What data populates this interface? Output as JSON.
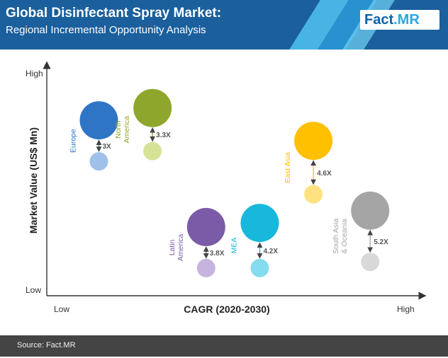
{
  "header": {
    "title": "Global Disinfectant Spray Market:",
    "subtitle": "Regional Incremental Opportunity Analysis",
    "logo": {
      "main": "Fact",
      "accent": ".MR"
    }
  },
  "footer": {
    "source": "Source: Fact.MR"
  },
  "colors": {
    "header_bg": "#1b5f9c",
    "stripe_light": "#4fc3f0",
    "stripe_mid": "#2a97d6",
    "footer_bg": "#444444"
  },
  "chart_data": {
    "type": "bubble",
    "xlabel": "CAGR (2020-2030)",
    "ylabel": "Market Value (US$ Mn)",
    "x_tick_labels": [
      "Low",
      "High"
    ],
    "y_tick_labels": [
      "Low",
      "High"
    ],
    "grid": false,
    "series": [
      {
        "name": "Europe",
        "label_lines": [
          "Europe"
        ],
        "color": "#2e75c6",
        "light_color": "#9fc0e8",
        "x": 0.1,
        "y_big": 0.81,
        "y_small": 0.61,
        "multiplier": "3X"
      },
      {
        "name": "North America",
        "label_lines": [
          "North",
          "America"
        ],
        "color": "#8ea62b",
        "light_color": "#d6e396",
        "x": 0.27,
        "y_big": 0.87,
        "y_small": 0.66,
        "multiplier": "3.3X"
      },
      {
        "name": "Latin America",
        "label_lines": [
          "Latin",
          "America"
        ],
        "color": "#7b5ba7",
        "light_color": "#c6b4de",
        "x": 0.44,
        "y_big": 0.29,
        "y_small": 0.09,
        "multiplier": "3.8X"
      },
      {
        "name": "MEA",
        "label_lines": [
          "MEA"
        ],
        "color": "#17b8dc",
        "light_color": "#86dcef",
        "x": 0.61,
        "y_big": 0.31,
        "y_small": 0.09,
        "multiplier": "4.2X"
      },
      {
        "name": "East Asia",
        "label_lines": [
          "East Asia"
        ],
        "color": "#ffc000",
        "light_color": "#ffe27f",
        "x": 0.78,
        "y_big": 0.71,
        "y_small": 0.45,
        "multiplier": "4.6X"
      },
      {
        "name": "South Asia & Oceania",
        "label_lines": [
          "South Asia",
          "& Oceania"
        ],
        "color": "#a5a5a5",
        "light_color": "#d8d8d8",
        "x": 0.96,
        "y_big": 0.37,
        "y_small": 0.12,
        "multiplier": "5.2X"
      }
    ]
  }
}
